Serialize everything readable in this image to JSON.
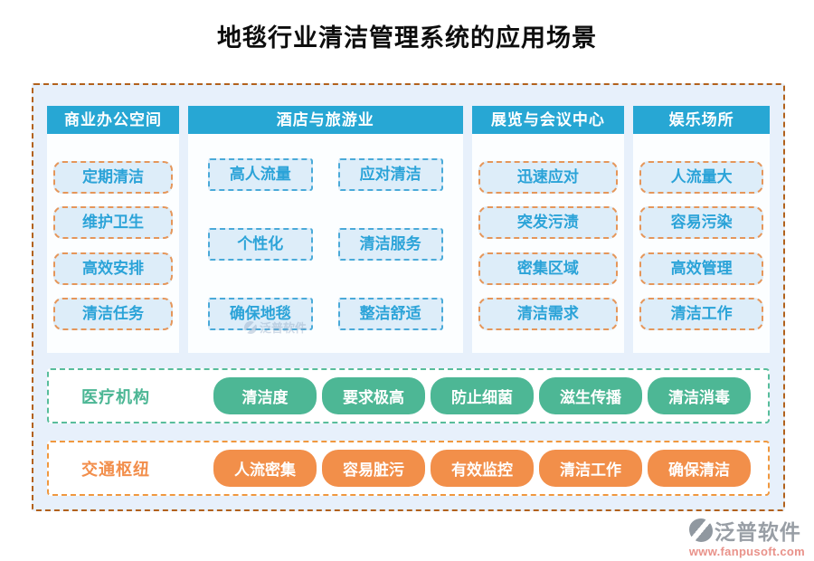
{
  "title": "地毯行业清洁管理系统的应用场景",
  "columns": [
    {
      "header": "商业办公空间",
      "items": [
        "定期清洁",
        "维护卫生",
        "高效安排",
        "清洁任务"
      ]
    },
    {
      "header": "酒店与旅游业",
      "items": [
        "高人流量",
        "应对清洁",
        "个性化",
        "清洁服务",
        "确保地毯",
        "整洁舒适"
      ]
    },
    {
      "header": "展览与会议中心",
      "items": [
        "迅速应对",
        "突发污渍",
        "密集区域",
        "清洁需求"
      ]
    },
    {
      "header": "娱乐场所",
      "items": [
        "人流量大",
        "容易污染",
        "高效管理",
        "清洁工作"
      ]
    }
  ],
  "rows": [
    {
      "label": "医疗机构",
      "theme": "green",
      "pills": [
        "清洁度",
        "要求极高",
        "防止细菌",
        "滋生传播",
        "清洁消毒"
      ]
    },
    {
      "label": "交通枢纽",
      "theme": "orange",
      "pills": [
        "人流密集",
        "容易脏污",
        "有效监控",
        "清洁工作",
        "确保清洁"
      ]
    }
  ],
  "watermark": "泛普软件",
  "footer": {
    "brand": "泛普软件",
    "url": "www.fanpusoft.com"
  },
  "colors": {
    "header_bg": "#27a7d4",
    "item_text": "#2ba3d8",
    "item_bg": "#ddedf9",
    "item_dash_orange": "#e5965a",
    "item_dash_blue": "#4aaad9",
    "outer_border": "#b2611c",
    "container_bg": "#e7f0fb",
    "green": "#4db795",
    "orange": "#f28f4a",
    "url_text": "#e9928a"
  }
}
